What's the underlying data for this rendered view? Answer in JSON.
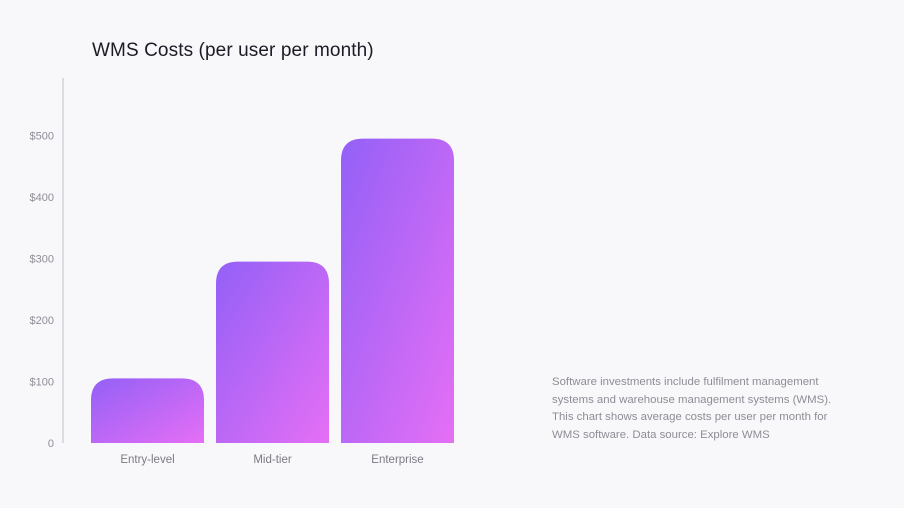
{
  "chart_data": {
    "type": "bar",
    "title": "WMS Costs (per user per month)",
    "categories": [
      "Entry-level",
      "Mid-tier",
      "Enterprise"
    ],
    "values": [
      105,
      295,
      495
    ],
    "y_ticks": [
      "0",
      "$100",
      "$200",
      "$300",
      "$400",
      "$500"
    ],
    "y_tick_values": [
      0,
      100,
      200,
      300,
      400,
      500
    ],
    "ylim": [
      0,
      590
    ],
    "grid": false,
    "xlabel": "",
    "ylabel": "",
    "colors": {
      "bar_gradient_start": "#9360f7",
      "bar_gradient_end": "#e56ff5",
      "axis": "#c8c8d0",
      "label": "#8d8d96"
    }
  },
  "caption": "Software investments include fulfilment management systems and warehouse management systems (WMS). This chart shows average costs per user per month for WMS software. Data source: Explore WMS"
}
